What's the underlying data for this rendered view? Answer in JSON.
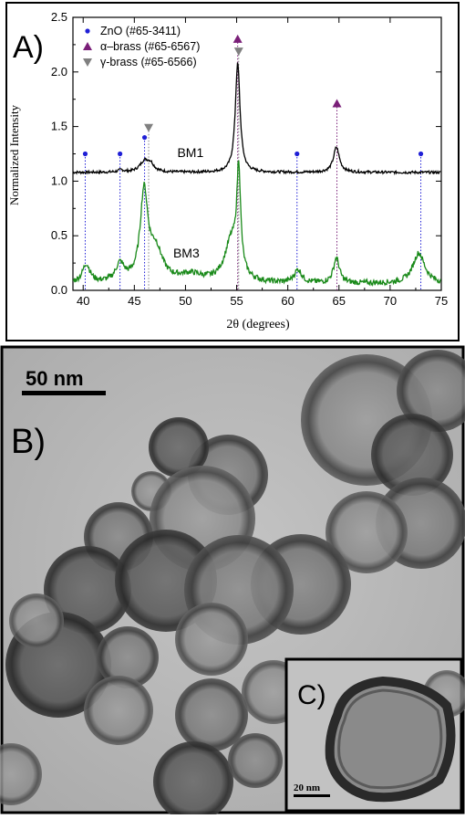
{
  "panel_a": {
    "label": "A)",
    "chart_data": {
      "type": "line",
      "xlabel": "2θ (degrees)",
      "ylabel": "Normalized Intensity",
      "xlim": [
        39,
        75
      ],
      "ylim": [
        0,
        2.5
      ],
      "xticks": [
        40,
        45,
        50,
        55,
        60,
        65,
        70,
        75
      ],
      "yticks": [
        0.0,
        0.5,
        1.0,
        1.5,
        2.0,
        2.5
      ],
      "legend_position": "top-left",
      "legend": [
        {
          "label": "ZnO (#65-3411)",
          "marker": "circle",
          "color": "#1f1fd6"
        },
        {
          "label": "α–brass (#65-6567)",
          "marker": "triangle-up",
          "color": "#7a1f78"
        },
        {
          "label": "γ-brass (#65-6566)",
          "marker": "triangle-down",
          "color": "#808080"
        }
      ],
      "series": [
        {
          "name": "BM1",
          "color": "#000000",
          "baseline": 1.08,
          "peaks": [
            {
              "x": 43.7,
              "height": 0.02,
              "width": 0.3
            },
            {
              "x": 46.0,
              "height": 0.1,
              "width": 0.55
            },
            {
              "x": 46.6,
              "height": 0.06,
              "width": 0.4
            },
            {
              "x": 55.1,
              "height": 1.0,
              "width": 0.28
            },
            {
              "x": 64.75,
              "height": 0.23,
              "width": 0.35
            }
          ],
          "noise": 0.012
        },
        {
          "name": "BM3",
          "color": "#1a8a1a",
          "baseline": 0.06,
          "peaks": [
            {
              "x": 40.3,
              "height": 0.17,
              "width": 0.45
            },
            {
              "x": 43.6,
              "height": 0.16,
              "width": 0.5
            },
            {
              "x": 45.95,
              "height": 0.8,
              "width": 0.45
            },
            {
              "x": 47.1,
              "height": 0.28,
              "width": 0.8
            },
            {
              "x": 50.5,
              "height": 0.07,
              "width": 1.5
            },
            {
              "x": 54.5,
              "height": 0.38,
              "width": 0.8
            },
            {
              "x": 55.2,
              "height": 0.92,
              "width": 0.22
            },
            {
              "x": 61.0,
              "height": 0.12,
              "width": 0.45
            },
            {
              "x": 64.75,
              "height": 0.23,
              "width": 0.35
            },
            {
              "x": 72.8,
              "height": 0.28,
              "width": 0.7
            }
          ],
          "noise": 0.025
        }
      ],
      "reference_lines": [
        {
          "x": 40.2,
          "color": "#1f1fd6",
          "marker": "circle",
          "marker_y": 1.25
        },
        {
          "x": 43.6,
          "color": "#1f1fd6",
          "marker": "circle",
          "marker_y": 1.25
        },
        {
          "x": 46.0,
          "color": "#1f1fd6",
          "marker": "circle",
          "marker_y": 1.4
        },
        {
          "x": 46.4,
          "color": "#808080",
          "marker": "triangle-down",
          "marker_y": 1.49
        },
        {
          "x": 55.1,
          "color": "#7a1f78",
          "marker": "triangle-up",
          "marker_y": 2.3
        },
        {
          "x": 55.2,
          "color": "#808080",
          "marker": "triangle-down",
          "marker_y": 2.19
        },
        {
          "x": 60.9,
          "color": "#1f1fd6",
          "marker": "circle",
          "marker_y": 1.25
        },
        {
          "x": 64.8,
          "color": "#7a1f78",
          "marker": "triangle-up",
          "marker_y": 1.71
        },
        {
          "x": 73.0,
          "color": "#1f1fd6",
          "marker": "circle",
          "marker_y": 1.25
        }
      ],
      "annotations": [
        {
          "text": "BM1",
          "x": 49.2,
          "y": 1.22
        },
        {
          "text": "BM3",
          "x": 48.8,
          "y": 0.3
        }
      ]
    }
  },
  "panel_b": {
    "label": "B)",
    "scale_bar": "50 nm"
  },
  "panel_c": {
    "label": "C)",
    "scale_bar": "20 nm"
  }
}
